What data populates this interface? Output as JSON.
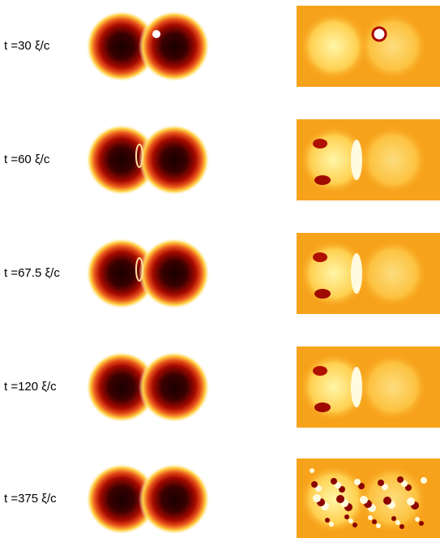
{
  "rows": [
    {
      "label": "t =30 ξ/c"
    },
    {
      "label": "t =60 ξ/c"
    },
    {
      "label": "t =67.5 ξ/c"
    },
    {
      "label": "t =120 ξ/c"
    },
    {
      "label": "t =375 ξ/c"
    }
  ]
}
